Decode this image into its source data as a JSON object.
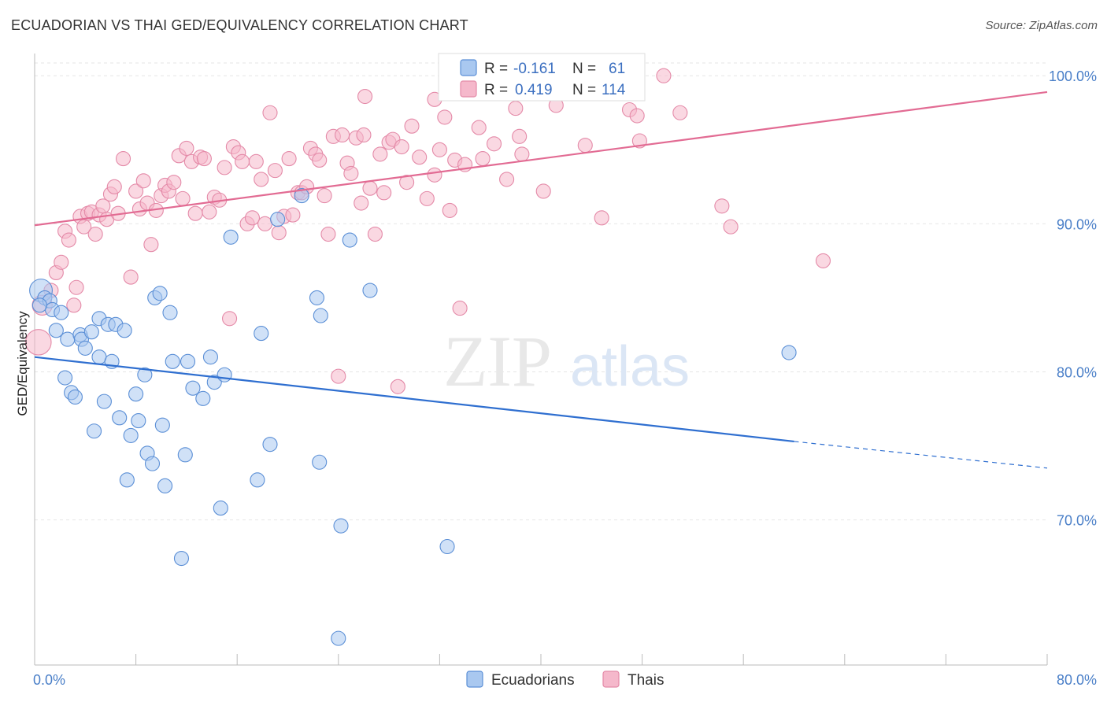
{
  "title": "ECUADORIAN VS THAI GED/EQUIVALENCY CORRELATION CHART",
  "source": "Source: ZipAtlas.com",
  "watermark": {
    "zip": "ZIP",
    "atlas": "atlas"
  },
  "colors": {
    "ecuadorian_fill": "#a9c8f0",
    "ecuadorian_stroke": "#5b8fd6",
    "ecuadorian_line": "#2f6fd0",
    "thai_fill": "#f5b8cb",
    "thai_stroke": "#e48aa8",
    "thai_line": "#e26b93",
    "tick_label": "#4a7fc8",
    "grid": "#e6e6e6"
  },
  "legend": {
    "ecuadorian": {
      "r_label": "R = ",
      "r_value": "-0.161",
      "n_label": "N = ",
      "n_value": "61"
    },
    "thai": {
      "r_label": "R = ",
      "r_value": "0.419",
      "n_label": "N = ",
      "n_value": "114"
    }
  },
  "chart_data": {
    "type": "scatter",
    "title": "ECUADORIAN VS THAI GED/EQUIVALENCY CORRELATION CHART",
    "xlabel": "",
    "ylabel": "GED/Equivalency",
    "xlim": [
      0,
      80
    ],
    "ylim": [
      60.2,
      101.5
    ],
    "x_tick_labels": [
      "0.0%",
      "80.0%"
    ],
    "y_ticks": [
      70,
      80,
      90,
      100
    ],
    "y_tick_labels": [
      "70.0%",
      "80.0%",
      "90.0%",
      "100.0%"
    ],
    "grid": true,
    "legend_position": "top-center",
    "series": [
      {
        "name": "Ecuadorians",
        "r": -0.161,
        "n": 61,
        "trend": {
          "x0": 0,
          "y0": 81.0,
          "x1": 60,
          "y1": 75.3,
          "dash_to_x": 80,
          "dash_to_y": 73.5
        },
        "points": [
          [
            0.5,
            85.5,
            1.6
          ],
          [
            0.8,
            85.0,
            1
          ],
          [
            1.2,
            84.8,
            1
          ],
          [
            1.4,
            84.2,
            1
          ],
          [
            1.7,
            82.8,
            1
          ],
          [
            2.1,
            84.0,
            1
          ],
          [
            2.4,
            79.6,
            1
          ],
          [
            2.6,
            82.2,
            1
          ],
          [
            2.9,
            78.6,
            1
          ],
          [
            3.2,
            78.3,
            1
          ],
          [
            3.6,
            82.5,
            1
          ],
          [
            3.7,
            82.2,
            1
          ],
          [
            4.0,
            81.6,
            1
          ],
          [
            4.5,
            82.7,
            1
          ],
          [
            4.7,
            76.0,
            1
          ],
          [
            5.1,
            83.6,
            1
          ],
          [
            5.1,
            81.0,
            1
          ],
          [
            5.5,
            78.0,
            1
          ],
          [
            5.8,
            83.2,
            1
          ],
          [
            6.1,
            80.7,
            1
          ],
          [
            6.4,
            83.2,
            1
          ],
          [
            6.7,
            76.9,
            1
          ],
          [
            7.1,
            82.8,
            1
          ],
          [
            7.3,
            72.7,
            1
          ],
          [
            7.6,
            75.7,
            1
          ],
          [
            8.0,
            78.5,
            1
          ],
          [
            8.2,
            76.7,
            1
          ],
          [
            8.7,
            79.8,
            1
          ],
          [
            8.9,
            74.5,
            1
          ],
          [
            9.3,
            73.8,
            1
          ],
          [
            9.5,
            85.0,
            1
          ],
          [
            9.9,
            85.3,
            1
          ],
          [
            10.1,
            76.4,
            1
          ],
          [
            10.3,
            72.3,
            1
          ],
          [
            10.7,
            84.0,
            1
          ],
          [
            10.9,
            80.7,
            1
          ],
          [
            11.6,
            67.4,
            1
          ],
          [
            11.9,
            74.4,
            1
          ],
          [
            12.1,
            80.7,
            1
          ],
          [
            12.5,
            78.9,
            1
          ],
          [
            13.3,
            78.2,
            1
          ],
          [
            13.9,
            81.0,
            1
          ],
          [
            14.2,
            79.3,
            1
          ],
          [
            14.7,
            70.8,
            1
          ],
          [
            15.0,
            79.8,
            1
          ],
          [
            15.5,
            89.1,
            1
          ],
          [
            17.6,
            72.7,
            1
          ],
          [
            17.9,
            82.6,
            1
          ],
          [
            18.6,
            75.1,
            1
          ],
          [
            19.2,
            90.3,
            1
          ],
          [
            21.1,
            91.9,
            1
          ],
          [
            22.3,
            85.0,
            1
          ],
          [
            22.6,
            83.8,
            1
          ],
          [
            22.5,
            73.9,
            1
          ],
          [
            24.0,
            62.0,
            1
          ],
          [
            24.2,
            69.6,
            1
          ],
          [
            24.9,
            88.9,
            1
          ],
          [
            26.5,
            85.5,
            1
          ],
          [
            32.6,
            68.2,
            1
          ],
          [
            59.6,
            81.3,
            1
          ],
          [
            0.4,
            84.5,
            1
          ]
        ]
      },
      {
        "name": "Thais",
        "r": 0.419,
        "n": 114,
        "trend": {
          "x0": 0,
          "y0": 89.9,
          "x1": 80,
          "y1": 98.9
        },
        "points": [
          [
            0.3,
            82.0,
            1.8
          ],
          [
            0.6,
            84.5,
            1.4
          ],
          [
            1.3,
            85.5,
            1
          ],
          [
            1.7,
            86.7,
            1
          ],
          [
            2.1,
            87.4,
            1
          ],
          [
            2.4,
            89.5,
            1
          ],
          [
            2.7,
            88.9,
            1
          ],
          [
            3.1,
            84.5,
            1
          ],
          [
            3.3,
            85.7,
            1
          ],
          [
            3.6,
            90.5,
            1
          ],
          [
            3.9,
            89.8,
            1
          ],
          [
            4.2,
            90.7,
            1
          ],
          [
            4.5,
            90.8,
            1
          ],
          [
            4.8,
            89.3,
            1
          ],
          [
            5.1,
            90.6,
            1
          ],
          [
            5.4,
            91.2,
            1
          ],
          [
            5.7,
            90.3,
            1
          ],
          [
            6.0,
            92.0,
            1
          ],
          [
            6.3,
            92.5,
            1
          ],
          [
            6.6,
            90.7,
            1
          ],
          [
            7.0,
            94.4,
            1
          ],
          [
            7.6,
            86.4,
            1
          ],
          [
            8.0,
            92.2,
            1
          ],
          [
            8.3,
            91.0,
            1
          ],
          [
            8.6,
            92.9,
            1
          ],
          [
            8.9,
            91.4,
            1
          ],
          [
            9.2,
            88.6,
            1
          ],
          [
            9.6,
            90.9,
            1
          ],
          [
            10.0,
            91.9,
            1
          ],
          [
            10.3,
            92.6,
            1
          ],
          [
            10.6,
            92.2,
            1
          ],
          [
            11.0,
            92.8,
            1
          ],
          [
            11.4,
            94.6,
            1
          ],
          [
            11.7,
            91.7,
            1
          ],
          [
            12.0,
            95.1,
            1
          ],
          [
            12.4,
            94.2,
            1
          ],
          [
            12.7,
            90.7,
            1
          ],
          [
            13.1,
            94.5,
            1
          ],
          [
            13.4,
            94.4,
            1
          ],
          [
            13.8,
            90.8,
            1
          ],
          [
            14.2,
            91.8,
            1
          ],
          [
            14.6,
            91.6,
            1
          ],
          [
            15.0,
            93.8,
            1
          ],
          [
            15.4,
            83.6,
            1
          ],
          [
            15.7,
            95.2,
            1
          ],
          [
            16.1,
            94.8,
            1
          ],
          [
            16.4,
            94.2,
            1
          ],
          [
            16.8,
            90.0,
            1
          ],
          [
            17.2,
            90.4,
            1
          ],
          [
            17.5,
            94.2,
            1
          ],
          [
            17.9,
            93.0,
            1
          ],
          [
            18.2,
            90.0,
            1
          ],
          [
            18.6,
            97.5,
            1
          ],
          [
            19.0,
            93.6,
            1
          ],
          [
            19.3,
            89.4,
            1
          ],
          [
            19.7,
            90.5,
            1
          ],
          [
            20.1,
            94.4,
            1
          ],
          [
            20.4,
            90.6,
            1
          ],
          [
            20.8,
            92.1,
            1
          ],
          [
            21.1,
            92.1,
            1
          ],
          [
            21.5,
            92.5,
            1
          ],
          [
            21.8,
            95.1,
            1
          ],
          [
            22.2,
            94.7,
            1
          ],
          [
            22.5,
            94.3,
            1
          ],
          [
            22.9,
            91.9,
            1
          ],
          [
            23.2,
            89.3,
            1
          ],
          [
            23.6,
            95.9,
            1
          ],
          [
            24.0,
            79.7,
            1
          ],
          [
            24.3,
            96.0,
            1
          ],
          [
            24.7,
            94.1,
            1
          ],
          [
            25.0,
            93.4,
            1
          ],
          [
            25.4,
            95.8,
            1
          ],
          [
            25.8,
            91.4,
            1
          ],
          [
            26.1,
            98.6,
            1
          ],
          [
            26.5,
            92.4,
            1
          ],
          [
            26.9,
            89.3,
            1
          ],
          [
            27.3,
            94.7,
            1
          ],
          [
            27.6,
            92.1,
            1
          ],
          [
            28.0,
            95.5,
            1
          ],
          [
            28.3,
            95.7,
            1
          ],
          [
            28.7,
            79.0,
            1
          ],
          [
            29.0,
            95.2,
            1
          ],
          [
            29.4,
            92.8,
            1
          ],
          [
            29.8,
            96.6,
            1
          ],
          [
            30.4,
            94.5,
            1
          ],
          [
            31.0,
            91.7,
            1
          ],
          [
            31.6,
            93.3,
            1
          ],
          [
            32.0,
            95.0,
            1
          ],
          [
            32.4,
            97.2,
            1
          ],
          [
            32.8,
            90.9,
            1
          ],
          [
            33.2,
            94.3,
            1
          ],
          [
            33.6,
            84.3,
            1
          ],
          [
            34.0,
            94.0,
            1
          ],
          [
            35.1,
            96.5,
            1
          ],
          [
            35.4,
            94.4,
            1
          ],
          [
            36.3,
            95.4,
            1
          ],
          [
            37.3,
            93.0,
            1
          ],
          [
            38.0,
            97.8,
            1
          ],
          [
            38.3,
            95.9,
            1
          ],
          [
            38.5,
            94.7,
            1
          ],
          [
            40.2,
            92.2,
            1
          ],
          [
            41.2,
            98.0,
            1
          ],
          [
            43.5,
            95.3,
            1
          ],
          [
            44.8,
            90.4,
            1
          ],
          [
            47.0,
            97.7,
            1
          ],
          [
            47.6,
            97.3,
            1
          ],
          [
            47.8,
            95.6,
            1
          ],
          [
            49.7,
            100.0,
            1
          ],
          [
            51.0,
            97.5,
            1
          ],
          [
            54.3,
            91.2,
            1
          ],
          [
            55.0,
            89.8,
            1
          ],
          [
            62.3,
            87.5,
            1
          ],
          [
            31.6,
            98.4,
            1
          ],
          [
            26.0,
            96.0,
            1
          ]
        ]
      }
    ]
  },
  "bottom_legend": [
    {
      "label": "Ecuadorians"
    },
    {
      "label": "Thais"
    }
  ]
}
